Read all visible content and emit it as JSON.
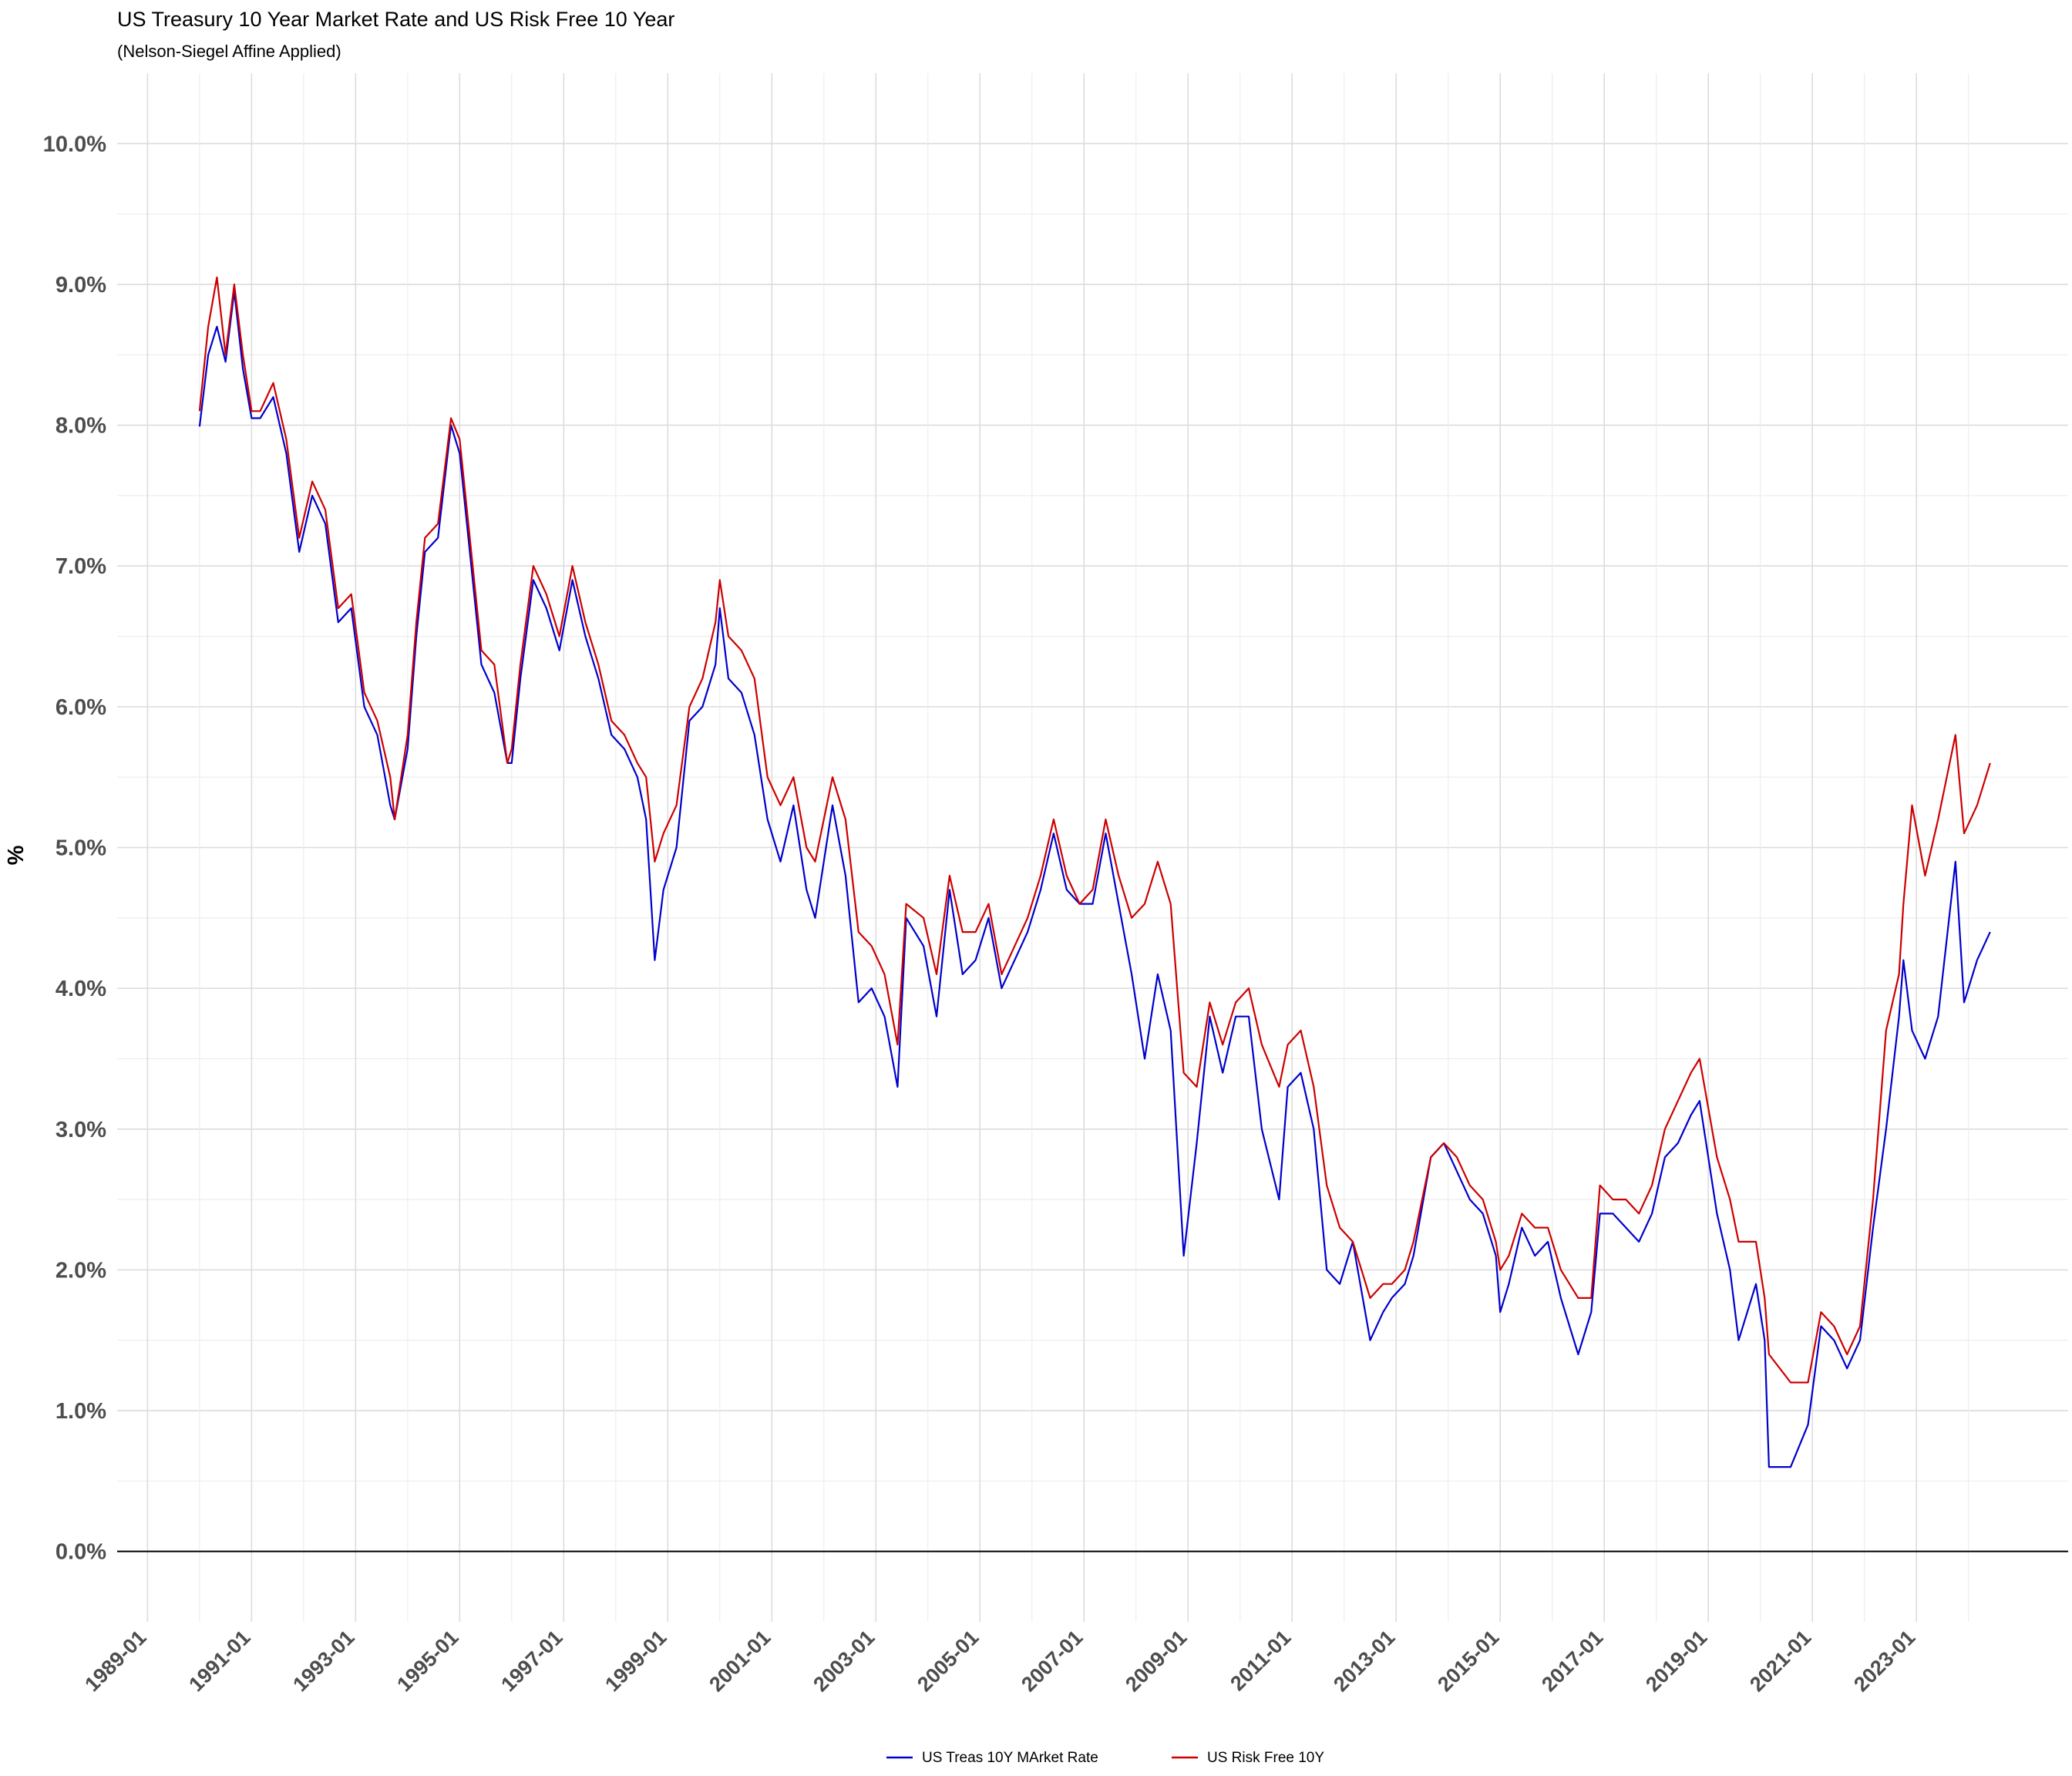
{
  "chart_data": {
    "type": "line",
    "title": "US Treasury 10 Year Market Rate and US Risk Free 10 Year",
    "subtitle": "(Nelson-Siegel Affine Applied)",
    "xlabel": "",
    "ylabel": "%",
    "xlim": [
      "1988-06",
      "2025-12"
    ],
    "ylim": [
      -0.5,
      10.5
    ],
    "grid": true,
    "legend_position": "bottom",
    "y_ticks": [
      "0.0%",
      "1.0%",
      "2.0%",
      "3.0%",
      "4.0%",
      "5.0%",
      "6.0%",
      "7.0%",
      "8.0%",
      "9.0%",
      "10.0%"
    ],
    "y_tick_values": [
      0,
      1,
      2,
      3,
      4,
      5,
      6,
      7,
      8,
      9,
      10
    ],
    "x_ticks": [
      "1989-01",
      "1991-01",
      "1993-01",
      "1995-01",
      "1997-01",
      "1999-01",
      "2001-01",
      "2003-01",
      "2005-01",
      "2007-01",
      "2009-01",
      "2011-01",
      "2013-01",
      "2015-01",
      "2017-01",
      "2019-01",
      "2021-01",
      "2023-01"
    ],
    "series": [
      {
        "name": "US Treas 10Y MArket Rate",
        "color": "#0000cc",
        "x": [
          "1990-01",
          "1990-03",
          "1990-05",
          "1990-07",
          "1990-09",
          "1990-11",
          "1991-01",
          "1991-03",
          "1991-06",
          "1991-09",
          "1991-12",
          "1992-03",
          "1992-06",
          "1992-09",
          "1992-12",
          "1993-03",
          "1993-06",
          "1993-09",
          "1993-10",
          "1994-01",
          "1994-03",
          "1994-05",
          "1994-08",
          "1994-11",
          "1995-01",
          "1995-03",
          "1995-06",
          "1995-09",
          "1995-12",
          "1996-01",
          "1996-03",
          "1996-06",
          "1996-09",
          "1996-12",
          "1997-03",
          "1997-06",
          "1997-09",
          "1997-12",
          "1998-03",
          "1998-06",
          "1998-08",
          "1998-10",
          "1998-12",
          "1999-03",
          "1999-06",
          "1999-09",
          "1999-12",
          "2000-01",
          "2000-03",
          "2000-06",
          "2000-09",
          "2000-12",
          "2001-03",
          "2001-06",
          "2001-09",
          "2001-11",
          "2002-03",
          "2002-06",
          "2002-09",
          "2002-12",
          "2003-03",
          "2003-06",
          "2003-08",
          "2003-12",
          "2004-03",
          "2004-06",
          "2004-09",
          "2004-12",
          "2005-03",
          "2005-06",
          "2005-09",
          "2005-12",
          "2006-03",
          "2006-06",
          "2006-09",
          "2006-12",
          "2007-03",
          "2007-06",
          "2007-09",
          "2007-12",
          "2008-03",
          "2008-06",
          "2008-09",
          "2008-12",
          "2009-03",
          "2009-06",
          "2009-09",
          "2009-12",
          "2010-03",
          "2010-06",
          "2010-10",
          "2010-12",
          "2011-03",
          "2011-06",
          "2011-09",
          "2011-12",
          "2012-03",
          "2012-07",
          "2012-10",
          "2012-12",
          "2013-03",
          "2013-05",
          "2013-09",
          "2013-12",
          "2014-03",
          "2014-06",
          "2014-09",
          "2014-12",
          "2015-01",
          "2015-03",
          "2015-06",
          "2015-09",
          "2015-12",
          "2016-03",
          "2016-07",
          "2016-10",
          "2016-12",
          "2017-03",
          "2017-06",
          "2017-09",
          "2017-12",
          "2018-03",
          "2018-06",
          "2018-09",
          "2018-11",
          "2019-03",
          "2019-06",
          "2019-08",
          "2019-12",
          "2020-02",
          "2020-03",
          "2020-08",
          "2020-12",
          "2021-03",
          "2021-06",
          "2021-09",
          "2021-12",
          "2022-03",
          "2022-06",
          "2022-09",
          "2022-10",
          "2022-12",
          "2023-03",
          "2023-06",
          "2023-10",
          "2023-12",
          "2024-03",
          "2024-06"
        ],
        "y": [
          7.99,
          8.5,
          8.7,
          8.45,
          8.95,
          8.4,
          8.05,
          8.05,
          8.2,
          7.8,
          7.1,
          7.5,
          7.3,
          6.6,
          6.7,
          6.0,
          5.8,
          5.3,
          5.2,
          5.7,
          6.5,
          7.1,
          7.2,
          8.0,
          7.8,
          7.2,
          6.3,
          6.1,
          5.6,
          5.6,
          6.2,
          6.9,
          6.7,
          6.4,
          6.9,
          6.5,
          6.2,
          5.8,
          5.7,
          5.5,
          5.2,
          4.2,
          4.7,
          5.0,
          5.9,
          6.0,
          6.3,
          6.7,
          6.2,
          6.1,
          5.8,
          5.2,
          4.9,
          5.3,
          4.7,
          4.5,
          5.3,
          4.8,
          3.9,
          4.0,
          3.8,
          3.3,
          4.5,
          4.3,
          3.8,
          4.7,
          4.1,
          4.2,
          4.5,
          4.0,
          4.2,
          4.4,
          4.7,
          5.1,
          4.7,
          4.6,
          4.6,
          5.1,
          4.6,
          4.1,
          3.5,
          4.1,
          3.7,
          2.1,
          2.9,
          3.8,
          3.4,
          3.8,
          3.8,
          3.0,
          2.5,
          3.3,
          3.4,
          3.0,
          2.0,
          1.9,
          2.2,
          1.5,
          1.7,
          1.8,
          1.9,
          2.1,
          2.8,
          2.9,
          2.7,
          2.5,
          2.4,
          2.1,
          1.7,
          1.9,
          2.3,
          2.1,
          2.2,
          1.8,
          1.4,
          1.7,
          2.4,
          2.4,
          2.3,
          2.2,
          2.4,
          2.8,
          2.9,
          3.1,
          3.2,
          2.4,
          2.0,
          1.5,
          1.9,
          1.5,
          0.6,
          0.6,
          0.9,
          1.6,
          1.5,
          1.3,
          1.5,
          2.3,
          3.0,
          3.8,
          4.2,
          3.7,
          3.5,
          3.8,
          4.9,
          3.9,
          4.2,
          4.4
        ]
      },
      {
        "name": "US Risk Free 10Y",
        "color": "#cc0000",
        "x": [
          "1990-01",
          "1990-03",
          "1990-05",
          "1990-07",
          "1990-09",
          "1990-11",
          "1991-01",
          "1991-03",
          "1991-06",
          "1991-09",
          "1991-12",
          "1992-03",
          "1992-06",
          "1992-09",
          "1992-12",
          "1993-03",
          "1993-06",
          "1993-09",
          "1993-10",
          "1994-01",
          "1994-03",
          "1994-05",
          "1994-08",
          "1994-11",
          "1995-01",
          "1995-03",
          "1995-06",
          "1995-09",
          "1995-12",
          "1996-01",
          "1996-03",
          "1996-06",
          "1996-09",
          "1996-12",
          "1997-03",
          "1997-06",
          "1997-09",
          "1997-12",
          "1998-03",
          "1998-06",
          "1998-08",
          "1998-10",
          "1998-12",
          "1999-03",
          "1999-06",
          "1999-09",
          "1999-12",
          "2000-01",
          "2000-03",
          "2000-06",
          "2000-09",
          "2000-12",
          "2001-03",
          "2001-06",
          "2001-09",
          "2001-11",
          "2002-03",
          "2002-06",
          "2002-09",
          "2002-12",
          "2003-03",
          "2003-06",
          "2003-08",
          "2003-12",
          "2004-03",
          "2004-06",
          "2004-09",
          "2004-12",
          "2005-03",
          "2005-06",
          "2005-09",
          "2005-12",
          "2006-03",
          "2006-06",
          "2006-09",
          "2006-12",
          "2007-03",
          "2007-06",
          "2007-09",
          "2007-12",
          "2008-03",
          "2008-06",
          "2008-09",
          "2008-12",
          "2009-03",
          "2009-06",
          "2009-09",
          "2009-12",
          "2010-03",
          "2010-06",
          "2010-10",
          "2010-12",
          "2011-03",
          "2011-06",
          "2011-09",
          "2011-12",
          "2012-03",
          "2012-07",
          "2012-10",
          "2012-12",
          "2013-03",
          "2013-05",
          "2013-09",
          "2013-12",
          "2014-03",
          "2014-06",
          "2014-09",
          "2014-12",
          "2015-01",
          "2015-03",
          "2015-06",
          "2015-09",
          "2015-12",
          "2016-03",
          "2016-07",
          "2016-10",
          "2016-12",
          "2017-03",
          "2017-06",
          "2017-09",
          "2017-12",
          "2018-03",
          "2018-06",
          "2018-09",
          "2018-11",
          "2019-03",
          "2019-06",
          "2019-08",
          "2019-12",
          "2020-02",
          "2020-03",
          "2020-08",
          "2020-12",
          "2021-03",
          "2021-06",
          "2021-09",
          "2021-12",
          "2022-03",
          "2022-06",
          "2022-09",
          "2022-10",
          "2022-12",
          "2023-03",
          "2023-06",
          "2023-10",
          "2023-12",
          "2024-03",
          "2024-06"
        ],
        "y": [
          8.1,
          8.7,
          9.05,
          8.5,
          9.0,
          8.5,
          8.1,
          8.1,
          8.3,
          7.9,
          7.2,
          7.6,
          7.4,
          6.7,
          6.8,
          6.1,
          5.9,
          5.5,
          5.2,
          5.8,
          6.6,
          7.2,
          7.3,
          8.05,
          7.9,
          7.3,
          6.4,
          6.3,
          5.6,
          5.7,
          6.3,
          7.0,
          6.8,
          6.5,
          7.0,
          6.6,
          6.3,
          5.9,
          5.8,
          5.6,
          5.5,
          4.9,
          5.1,
          5.3,
          6.0,
          6.2,
          6.6,
          6.9,
          6.5,
          6.4,
          6.2,
          5.5,
          5.3,
          5.5,
          5.0,
          4.9,
          5.5,
          5.2,
          4.4,
          4.3,
          4.1,
          3.6,
          4.6,
          4.5,
          4.1,
          4.8,
          4.4,
          4.4,
          4.6,
          4.1,
          4.3,
          4.5,
          4.8,
          5.2,
          4.8,
          4.6,
          4.7,
          5.2,
          4.8,
          4.5,
          4.6,
          4.9,
          4.6,
          3.4,
          3.3,
          3.9,
          3.6,
          3.9,
          4.0,
          3.6,
          3.3,
          3.6,
          3.7,
          3.3,
          2.6,
          2.3,
          2.2,
          1.8,
          1.9,
          1.9,
          2.0,
          2.2,
          2.8,
          2.9,
          2.8,
          2.6,
          2.5,
          2.2,
          2.0,
          2.1,
          2.4,
          2.3,
          2.3,
          2.0,
          1.8,
          1.8,
          2.6,
          2.5,
          2.5,
          2.4,
          2.6,
          3.0,
          3.2,
          3.4,
          3.5,
          2.8,
          2.5,
          2.2,
          2.2,
          1.8,
          1.4,
          1.2,
          1.2,
          1.7,
          1.6,
          1.4,
          1.6,
          2.5,
          3.7,
          4.1,
          4.6,
          5.3,
          4.8,
          5.2,
          5.8,
          5.1,
          5.3,
          5.6
        ]
      }
    ]
  }
}
